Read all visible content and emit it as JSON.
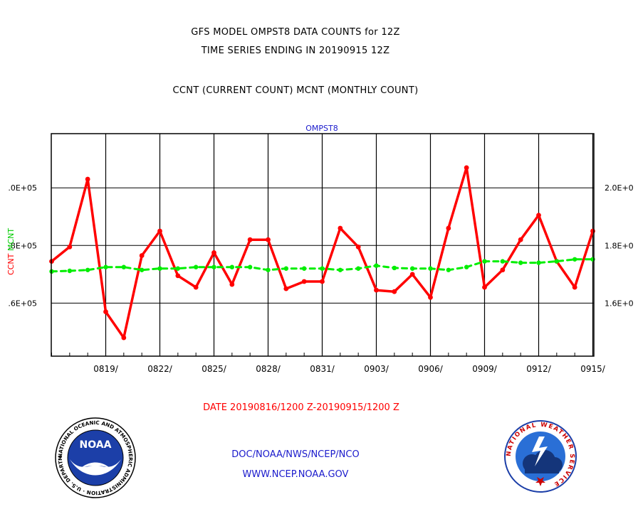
{
  "header": {
    "title_line1": "GFS MODEL OMPST8 DATA COUNTS for 12Z",
    "title_line2": "TIME SERIES ENDING IN 20190915 12Z",
    "subtitle": "CCNT (CURRENT COUNT) MCNT (MONTHLY COUNT)"
  },
  "footer": {
    "date_range": "DATE 20190816/1200 Z-20190915/1200 Z",
    "org_line": "DOC/NOAA/NWS/NCEP/NCO",
    "url": "WWW.NCEP.NOAA.GOV",
    "noaa_badge": "NOAA",
    "noaa_ring_text": "NATIONAL OCEANIC AND ATMOSPHERIC ADMINISTRATION · U.S. DEPARTMENT OF COMMERCE ·",
    "nws_ring_text": "NATIONAL WEATHER SERVICE"
  },
  "chart_data": {
    "type": "line",
    "panel_title": "OMPST8",
    "x_start": "2019-08-16",
    "x_end": "2019-09-15",
    "x_tick_labels": [
      "0819/",
      "0822/",
      "0825/",
      "0828/",
      "0831/",
      "0903/",
      "0906/",
      "0909/",
      "0912/",
      "0915/"
    ],
    "y_left_ticks": [
      ".6E+05",
      ".8E+05",
      ".0E+05"
    ],
    "y_left_tick_values": [
      1.6,
      1.8,
      2.0
    ],
    "y_right_ticks": [
      "1.6E+0",
      "1.8E+0",
      "2.0E+0"
    ],
    "y_right_tick_values": [
      1.6,
      1.8,
      2.0
    ],
    "ylim": [
      1.416,
      2.188
    ],
    "left_axis_label_red": "CCNT",
    "left_axis_label_green": "MCNT",
    "grid": true,
    "series": [
      {
        "name": "CCNT",
        "color": "#ff0000",
        "style": "solid",
        "x": [
          "2019-08-16",
          "2019-08-17",
          "2019-08-18",
          "2019-08-19",
          "2019-08-20",
          "2019-08-21",
          "2019-08-22",
          "2019-08-23",
          "2019-08-24",
          "2019-08-25",
          "2019-08-26",
          "2019-08-27",
          "2019-08-28",
          "2019-08-29",
          "2019-08-30",
          "2019-08-31",
          "2019-09-01",
          "2019-09-02",
          "2019-09-03",
          "2019-09-04",
          "2019-09-05",
          "2019-09-06",
          "2019-09-07",
          "2019-09-08",
          "2019-09-09",
          "2019-09-10",
          "2019-09-11",
          "2019-09-12",
          "2019-09-13",
          "2019-09-14",
          "2019-09-15"
        ],
        "values": [
          1.745,
          1.795,
          2.03,
          1.57,
          1.48,
          1.765,
          1.85,
          1.695,
          1.655,
          1.775,
          1.665,
          1.82,
          1.82,
          1.65,
          1.675,
          1.675,
          1.86,
          1.795,
          1.645,
          1.64,
          1.7,
          1.62,
          1.86,
          2.07,
          1.655,
          1.715,
          1.82,
          1.905,
          1.745,
          1.655,
          1.85
        ]
      },
      {
        "name": "MCNT",
        "color": "#00ee00",
        "style": "dashed",
        "x": [
          "2019-08-16",
          "2019-08-17",
          "2019-08-18",
          "2019-08-19",
          "2019-08-20",
          "2019-08-21",
          "2019-08-22",
          "2019-08-23",
          "2019-08-24",
          "2019-08-25",
          "2019-08-26",
          "2019-08-27",
          "2019-08-28",
          "2019-08-29",
          "2019-08-30",
          "2019-08-31",
          "2019-09-01",
          "2019-09-02",
          "2019-09-03",
          "2019-09-04",
          "2019-09-05",
          "2019-09-06",
          "2019-09-07",
          "2019-09-08",
          "2019-09-09",
          "2019-09-10",
          "2019-09-11",
          "2019-09-12",
          "2019-09-13",
          "2019-09-14",
          "2019-09-15"
        ],
        "values": [
          1.71,
          1.712,
          1.715,
          1.725,
          1.725,
          1.715,
          1.72,
          1.72,
          1.725,
          1.725,
          1.725,
          1.725,
          1.715,
          1.72,
          1.72,
          1.72,
          1.715,
          1.72,
          1.73,
          1.722,
          1.72,
          1.72,
          1.715,
          1.725,
          1.745,
          1.745,
          1.74,
          1.74,
          1.745,
          1.752,
          1.752
        ]
      }
    ]
  }
}
